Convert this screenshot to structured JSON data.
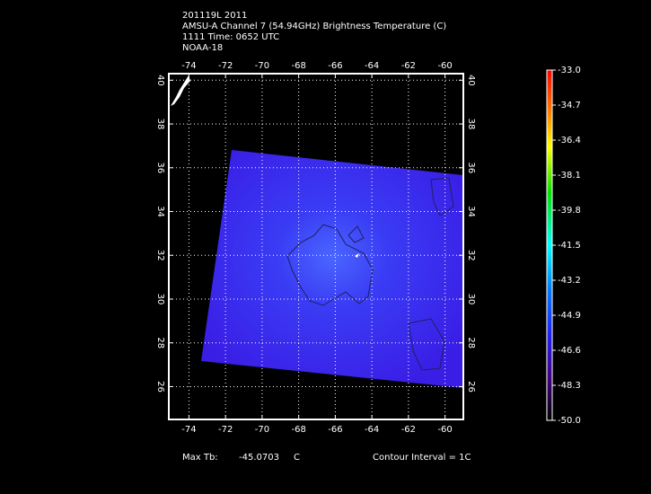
{
  "header": {
    "lines": [
      "201119L 2011",
      "AMSU-A Channel 7 (54.94GHz) Brightness Temperature (C)",
      "1111 Time: 0652 UTC",
      "NOAA-18"
    ]
  },
  "map": {
    "xlim": [
      -75.1,
      -59
    ],
    "ylim": [
      24.5,
      40.3
    ],
    "lon_ticks": [
      -74,
      -72,
      -70,
      -68,
      -66,
      -64,
      -62,
      -60
    ],
    "lat_ticks": [
      26,
      28,
      30,
      32,
      34,
      36,
      38,
      40
    ],
    "grid": true
  },
  "colorbar": {
    "lim": [
      -50,
      -33
    ],
    "ticks": [
      {
        "value": -33,
        "label": "-33.0"
      },
      {
        "value": -34.7,
        "label": "-34.7"
      },
      {
        "value": -36.4,
        "label": "-36.4"
      },
      {
        "value": -38.1,
        "label": "-38.1"
      },
      {
        "value": -39.8,
        "label": "-39.8"
      },
      {
        "value": -41.5,
        "label": "-41.5"
      },
      {
        "value": -43.2,
        "label": "-43.2"
      },
      {
        "value": -44.9,
        "label": "-44.9"
      },
      {
        "value": -46.6,
        "label": "-46.6"
      },
      {
        "value": -48.3,
        "label": "-48.3"
      },
      {
        "value": -50,
        "label": "-50.0"
      }
    ]
  },
  "footer": {
    "max_label": "Max Tb:",
    "max_value": "-45.0703",
    "unit": "C",
    "contour": "Contour Interval = 1C"
  }
}
